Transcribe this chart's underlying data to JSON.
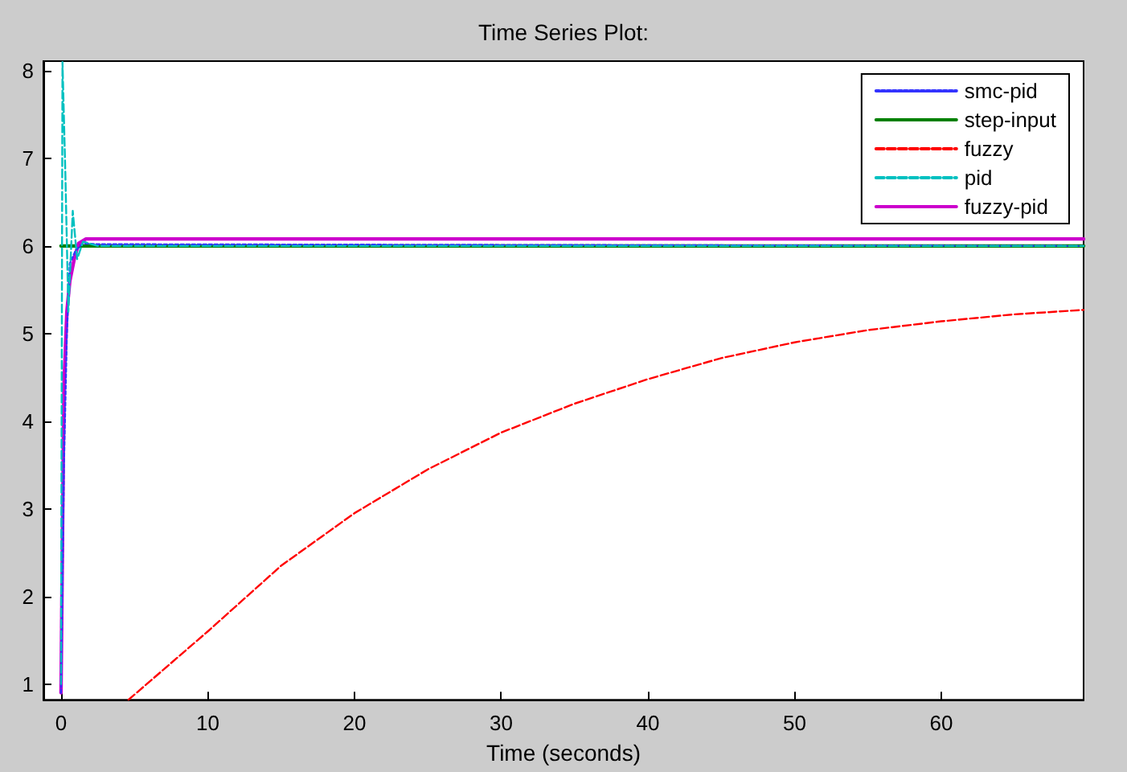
{
  "chart_data": {
    "type": "line",
    "title": "Time Series Plot:",
    "xlabel": "Time (seconds)",
    "xlim": [
      -1.2,
      69.7
    ],
    "xticks": [
      0,
      10,
      20,
      30,
      40,
      50,
      60
    ],
    "ylim": [
      0.82,
      8.11
    ],
    "yticks": [
      1,
      2,
      3,
      4,
      5,
      6,
      7,
      8
    ],
    "grid": false,
    "legend": "top right",
    "marker": "none",
    "series": [
      {
        "name": "smc-pid",
        "color": "#3333ff",
        "line_style": "dotted",
        "x": [
          0,
          0.2,
          0.4,
          0.6,
          1.0,
          1.5,
          2.5,
          69.7
        ],
        "values": [
          0.9,
          3.5,
          5.0,
          5.8,
          5.95,
          6.03,
          6.02,
          6.0
        ]
      },
      {
        "name": "step-input",
        "color": "#008000",
        "line_style": "solid",
        "x": [
          0,
          69.7
        ],
        "values": [
          6,
          6
        ]
      },
      {
        "name": "fuzzy",
        "color": "#ff0000",
        "line_style": "dashed",
        "x": [
          4.6,
          10,
          15,
          20,
          25,
          30,
          35,
          40,
          45,
          50,
          55,
          60,
          65,
          69.7
        ],
        "values": [
          0.82,
          1.6,
          2.35,
          2.95,
          3.45,
          3.87,
          4.2,
          4.48,
          4.72,
          4.9,
          5.04,
          5.14,
          5.22,
          5.27
        ]
      },
      {
        "name": "pid",
        "color": "#00c0c0",
        "line_style": "dashed",
        "x": [
          0,
          0.1,
          0.3,
          0.5,
          0.8,
          1.1,
          1.5,
          2.5,
          69.7
        ],
        "values": [
          1.0,
          8.1,
          6.8,
          5.25,
          6.4,
          5.85,
          6.05,
          6.0,
          6.0
        ]
      },
      {
        "name": "fuzzy-pid",
        "color": "#cc00cc",
        "line_style": "solid",
        "x": [
          0,
          0.2,
          0.4,
          0.6,
          0.9,
          1.2,
          1.7,
          69.7
        ],
        "values": [
          0.9,
          4.4,
          5.25,
          5.6,
          5.85,
          6.03,
          6.08,
          6.08
        ]
      }
    ]
  }
}
